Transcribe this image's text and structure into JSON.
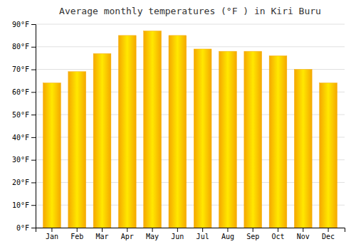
{
  "chart_data": {
    "type": "bar",
    "title": "Average monthly temperatures (°F ) in Kiri Buru",
    "categories": [
      "Jan",
      "Feb",
      "Mar",
      "Apr",
      "May",
      "Jun",
      "Jul",
      "Aug",
      "Sep",
      "Oct",
      "Nov",
      "Dec"
    ],
    "values": [
      64,
      69,
      77,
      85,
      87,
      85,
      79,
      78,
      78,
      76,
      70,
      64
    ],
    "color": "#F5A800",
    "ylim": [
      0,
      90
    ],
    "yticks": [
      {
        "value": 0,
        "label": "0°F"
      },
      {
        "value": 10,
        "label": "10°F"
      },
      {
        "value": 20,
        "label": "20°F"
      },
      {
        "value": 30,
        "label": "30°F"
      },
      {
        "value": 40,
        "label": "40°F"
      },
      {
        "value": 50,
        "label": "50°F"
      },
      {
        "value": 60,
        "label": "60°F"
      },
      {
        "value": 70,
        "label": "70°F"
      },
      {
        "value": 80,
        "label": "80°F"
      },
      {
        "value": 90,
        "label": "90°F"
      }
    ],
    "grid": true
  }
}
